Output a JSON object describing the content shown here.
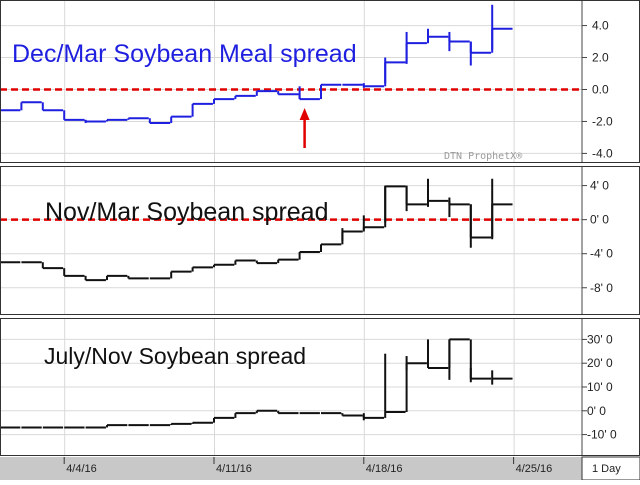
{
  "watermark": "DTN ProphetX®",
  "period_label": "1 Day",
  "colors": {
    "meal": "#1f1fe0",
    "bean": "#111111",
    "ref": "#e00000",
    "grid": "#d9d9d9",
    "axisbg": "#c8c8c8"
  },
  "chart_data": [
    {
      "type": "line",
      "title": "Dec/Mar Soybean Meal spread",
      "series": [
        {
          "values": [
            -1.3,
            -0.8,
            -1.3,
            -1.9,
            -2.0,
            -1.9,
            -1.8,
            -2.1,
            -1.7,
            -0.9,
            -0.6,
            -0.4,
            -0.1,
            -0.3,
            -0.6,
            0.3,
            0.3,
            0.2,
            1.7,
            2.9,
            3.3,
            3.0,
            2.3,
            3.8
          ]
        }
      ],
      "bars": [
        {
          "i": 0,
          "low": -1.3,
          "high": -1.3
        },
        {
          "i": 4,
          "low": -2.1,
          "high": -1.9
        },
        {
          "i": 14,
          "low": -0.6,
          "high": 0.2
        },
        {
          "i": 17,
          "low": 0.1,
          "high": 0.4
        },
        {
          "i": 18,
          "low": 0.4,
          "high": 2.0
        },
        {
          "i": 19,
          "low": 1.6,
          "high": 3.6
        },
        {
          "i": 20,
          "low": 2.9,
          "high": 3.8
        },
        {
          "i": 21,
          "low": 2.4,
          "high": 3.6
        },
        {
          "i": 22,
          "low": 1.5,
          "high": 3.0
        },
        {
          "i": 23,
          "low": 2.5,
          "high": 5.3
        }
      ],
      "ylim": [
        -4.6,
        5.6
      ],
      "yticks": [
        "4.0",
        "2.0",
        "0.0",
        "-2.0",
        "-4.0"
      ],
      "ytick_values": [
        4,
        2,
        0,
        -2,
        -4
      ],
      "reference_line": 0,
      "annotation": "red arrow",
      "annotation_index": 14
    },
    {
      "type": "line",
      "title": "Nov/Mar Soybean spread",
      "series": [
        {
          "values": [
            -5.0,
            -5.0,
            -5.7,
            -6.6,
            -7.1,
            -6.6,
            -6.9,
            -6.9,
            -6.1,
            -5.6,
            -5.3,
            -4.8,
            -5.1,
            -4.7,
            -3.8,
            -2.9,
            -1.4,
            -0.9,
            3.9,
            1.8,
            2.2,
            1.8,
            -2.1,
            1.8
          ]
        }
      ],
      "bars": [
        {
          "i": 16,
          "low": -2.5,
          "high": -1.0
        },
        {
          "i": 17,
          "low": -1.2,
          "high": 0.5
        },
        {
          "i": 18,
          "low": -0.3,
          "high": 4.0
        },
        {
          "i": 19,
          "low": 1.0,
          "high": 4.0
        },
        {
          "i": 20,
          "low": 1.5,
          "high": 4.8
        },
        {
          "i": 21,
          "low": 0.3,
          "high": 2.6
        },
        {
          "i": 22,
          "low": -3.3,
          "high": 1.8
        },
        {
          "i": 23,
          "low": -2.3,
          "high": 4.8
        }
      ],
      "ylim": [
        -11.2,
        6.3
      ],
      "yticks": [
        "4' 0",
        "0' 0",
        "-4' 0",
        "-8' 0"
      ],
      "ytick_values": [
        4,
        0,
        -4,
        -8
      ],
      "reference_line": 0
    },
    {
      "type": "line",
      "title": "July/Nov Soybean spread",
      "series": [
        {
          "values": [
            -7.0,
            -7.0,
            -7.0,
            -7.0,
            -7.0,
            -6.0,
            -6.0,
            -6.0,
            -5.5,
            -5.0,
            -3.0,
            -1.0,
            0.0,
            -1.0,
            -1.0,
            -1.0,
            -2.0,
            -3.0,
            -0.5,
            20.0,
            18.0,
            30.0,
            13.5,
            13.5
          ]
        }
      ],
      "bars": [
        {
          "i": 17,
          "low": -4.0,
          "high": -1.0
        },
        {
          "i": 18,
          "low": -0.5,
          "high": 24.0
        },
        {
          "i": 19,
          "low": 17.0,
          "high": 23.0
        },
        {
          "i": 20,
          "low": 18.0,
          "high": 30.0
        },
        {
          "i": 21,
          "low": 13.0,
          "high": 30.0
        },
        {
          "i": 22,
          "low": 12.0,
          "high": 18.0
        },
        {
          "i": 23,
          "low": 11.0,
          "high": 17.0
        }
      ],
      "ylim": [
        -19.0,
        39.0
      ],
      "yticks": [
        "30' 0",
        "20' 0",
        "10' 0",
        "0' 0",
        "-10' 0"
      ],
      "ytick_values": [
        30,
        20,
        10,
        0,
        -10
      ],
      "xticks": [
        "4/4/16",
        "4/11/16",
        "4/18/16",
        "4/25/16"
      ],
      "xtick_index": [
        3,
        10,
        17,
        24
      ]
    }
  ]
}
